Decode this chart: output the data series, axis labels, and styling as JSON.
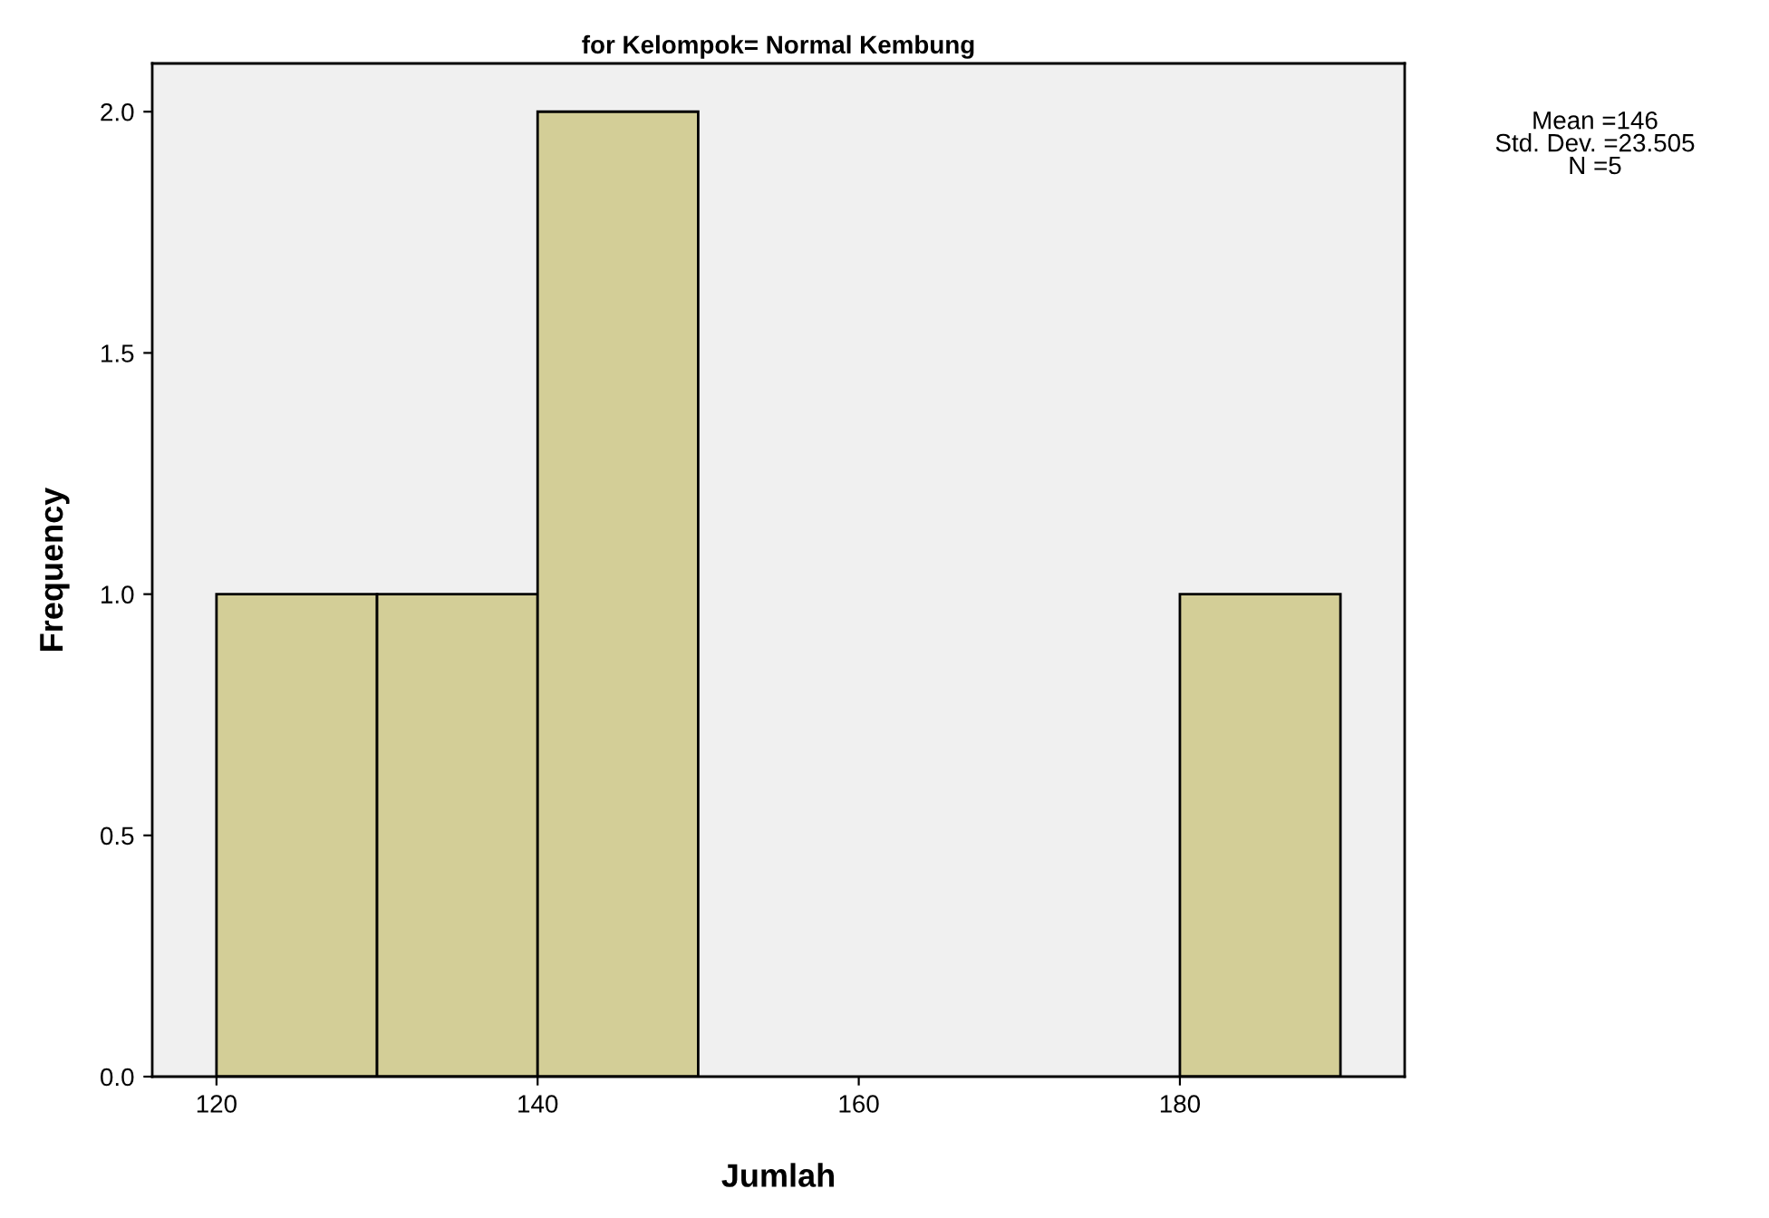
{
  "chart_data": {
    "type": "histogram",
    "title": "for Kelompok= Normal Kembung",
    "xlabel": "Jumlah",
    "ylabel": "Frequency",
    "bins": [
      120,
      130,
      140,
      150,
      160,
      170,
      180,
      190
    ],
    "values": [
      1,
      1,
      2,
      0,
      0,
      0,
      1
    ],
    "color": "#d3ce97",
    "xlim": [
      116,
      194
    ],
    "ylim": [
      0,
      2.1
    ],
    "xticks": [
      120,
      140,
      160,
      180
    ],
    "yticks": [
      {
        "value": 0,
        "label": "0.0"
      },
      {
        "value": 0.5,
        "label": "0.5"
      },
      {
        "value": 1,
        "label": "1.0"
      },
      {
        "value": 1.5,
        "label": "1.5"
      },
      {
        "value": 2,
        "label": "2.0"
      }
    ],
    "grid": false,
    "annotations": [
      "Mean =146",
      "Std. Dev. =23.505",
      "N =5"
    ]
  }
}
